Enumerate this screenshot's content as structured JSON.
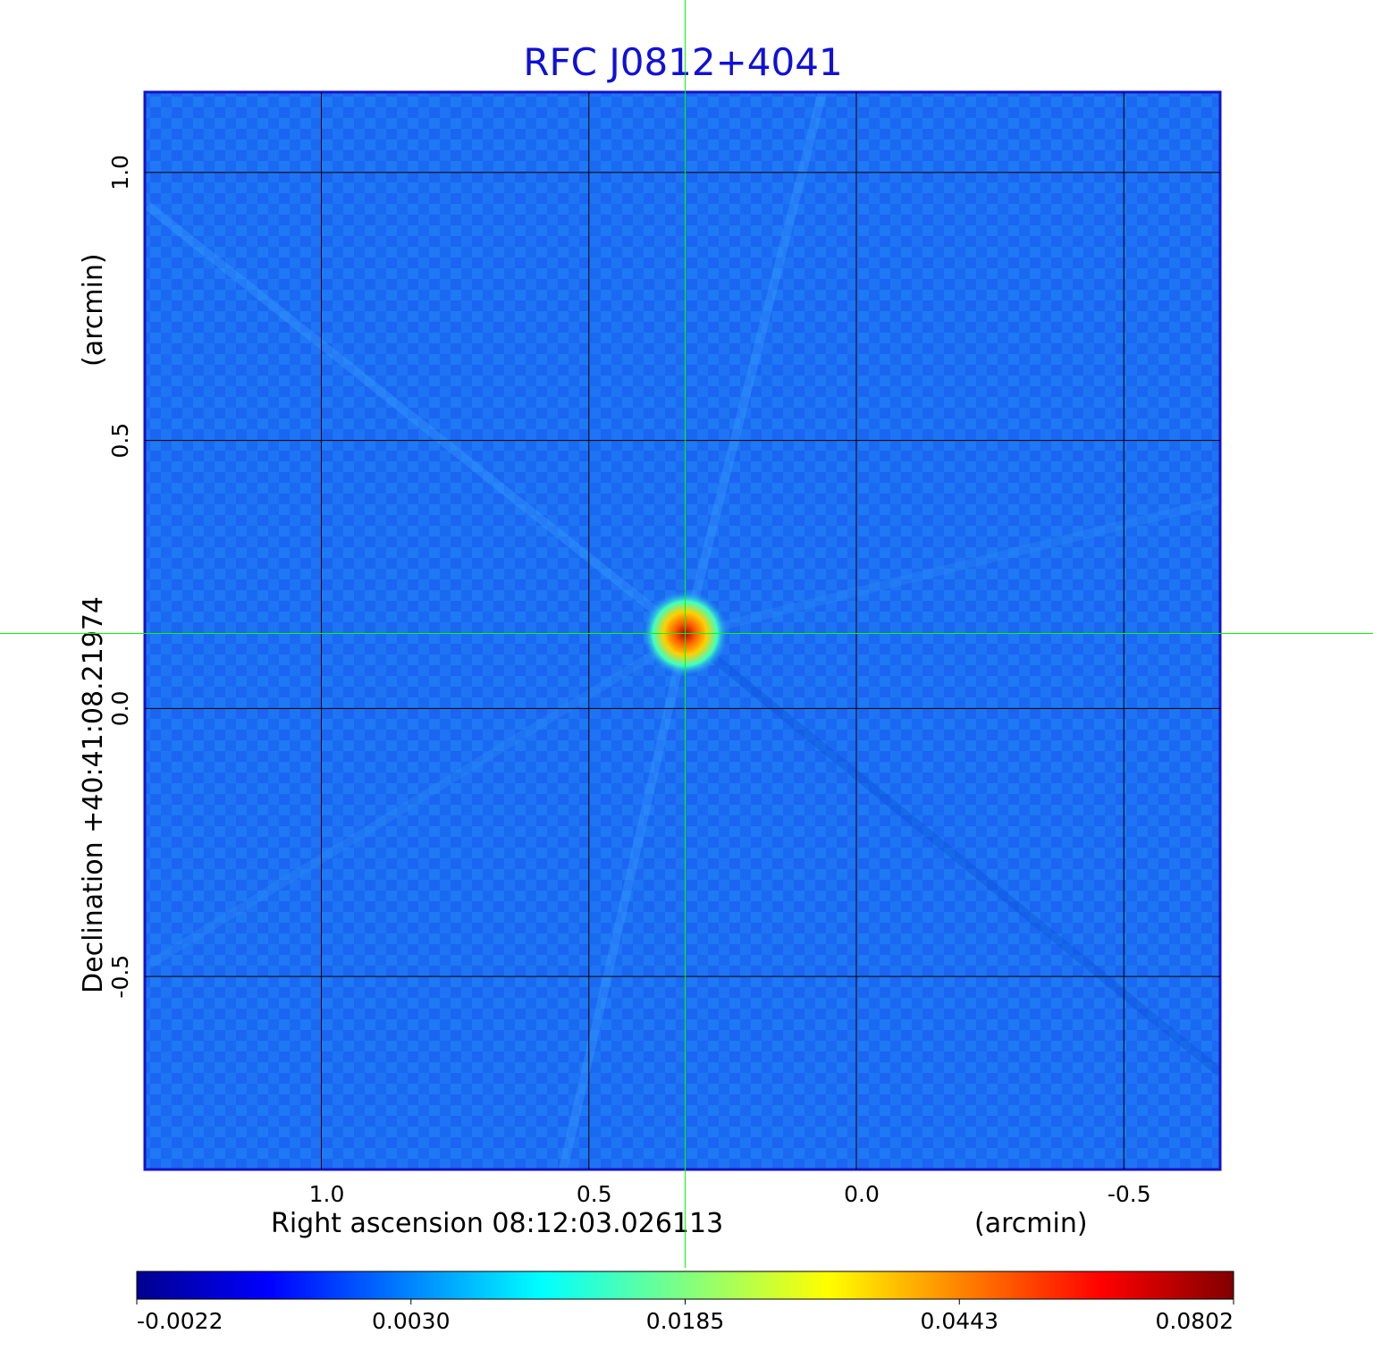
{
  "chart_data": {
    "type": "heatmap",
    "title": "RFC J0812+4041",
    "xlabel": "Right ascension  08:12:03.026113",
    "xunit": "(arcmin)",
    "ylabel": "Declination  +40:41:08.21974",
    "yunit": "(arcmin)",
    "xlim": [
      1.33,
      -0.68
    ],
    "ylim": [
      -0.86,
      1.15
    ],
    "x_reversed": true,
    "x_ticks": [
      1.0,
      0.5,
      0.0,
      -0.5
    ],
    "x_tick_labels": [
      "1.0",
      "0.5",
      "0.0",
      "-0.5"
    ],
    "y_ticks": [
      1.0,
      0.5,
      0.0,
      -0.5
    ],
    "y_tick_labels": [
      "1.0",
      "0.5",
      "0.0",
      "-0.5"
    ],
    "grid": true,
    "grid_color": "#000000",
    "crosshair": {
      "x": 0.32,
      "y": 0.14,
      "color": "#00ff00"
    },
    "colormap": "jet",
    "background_value": -0.0005,
    "source_peak": {
      "x": 0.32,
      "y": 0.14,
      "value": 0.0802
    },
    "colorbar": {
      "placement": "bottom",
      "ticks": [
        -0.0022,
        0.003,
        0.0185,
        0.0443,
        0.0802
      ],
      "tick_labels": [
        "-0.0022",
        "0.0030",
        "0.0185",
        "0.0443",
        "0.0802"
      ]
    }
  }
}
